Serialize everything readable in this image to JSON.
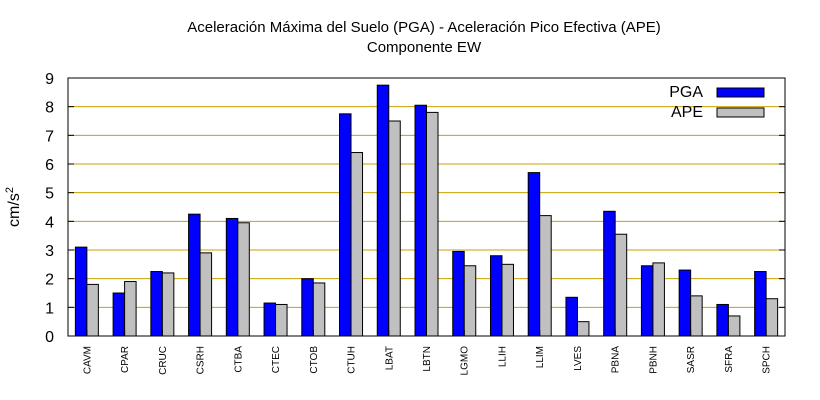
{
  "chart_data": {
    "type": "bar",
    "title": "Aceleración Máxima del Suelo (PGA) -  Aceleración Pico Efectiva (APE)",
    "subtitle": "Componente EW",
    "xlabel": "",
    "ylabel": "cm/s",
    "ylabel_superscript": "2",
    "ylim": [
      0,
      9
    ],
    "yticks": [
      "0",
      "1",
      "2",
      "3",
      "4",
      "5",
      "6",
      "7",
      "8",
      "9"
    ],
    "grid": true,
    "legend_position": "top-right",
    "categories": [
      "CAVM",
      "CPAR",
      "CRUC",
      "CSRH",
      "CTBA",
      "CTEC",
      "CTOB",
      "CTUH",
      "LBAT",
      "LBTN",
      "LGMO",
      "LLIH",
      "LLIM",
      "LVES",
      "PBNA",
      "PBNH",
      "SASR",
      "SFRA",
      "SPCH"
    ],
    "series": [
      {
        "name": "PGA",
        "color": "#0000ff",
        "values": [
          3.1,
          1.5,
          2.25,
          4.25,
          4.1,
          1.15,
          2.0,
          7.75,
          8.75,
          8.05,
          2.95,
          2.8,
          5.7,
          1.35,
          4.35,
          2.45,
          2.3,
          1.1,
          2.25
        ]
      },
      {
        "name": "APE",
        "color": "#c0c0c0",
        "values": [
          1.8,
          1.9,
          2.2,
          2.9,
          3.95,
          1.1,
          1.85,
          6.4,
          7.5,
          7.8,
          2.45,
          2.5,
          4.2,
          0.5,
          3.55,
          2.55,
          1.4,
          0.7,
          1.3
        ]
      }
    ]
  }
}
